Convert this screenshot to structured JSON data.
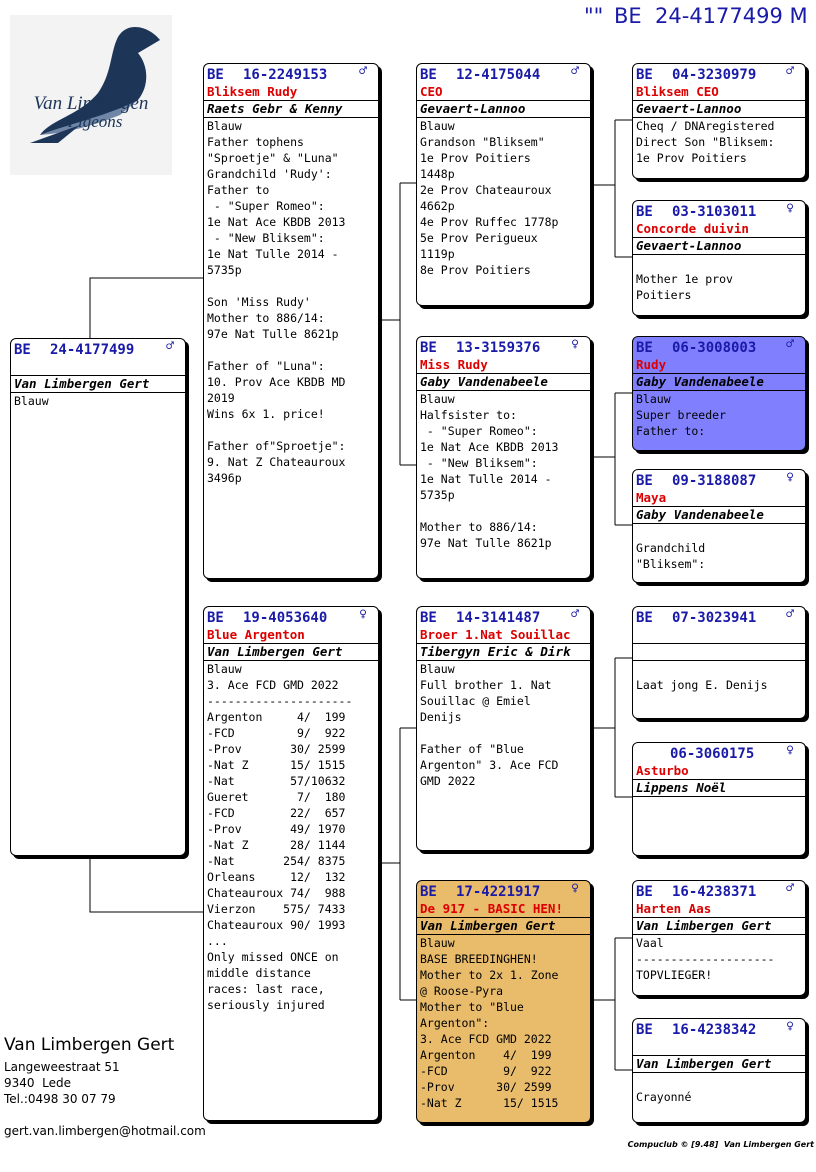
{
  "header": {
    "quote": "\"\"",
    "ring": "BE  24-4177499 M"
  },
  "logo": {
    "line1": "Van Limbergen",
    "line2": "Pigeons"
  },
  "pedigree": {
    "boxes": [
      {
        "prefix": "BE",
        "ring": "24-4177499",
        "sex": "♂",
        "owner": "Van Limbergen Gert",
        "paragraphs": [
          [
            "Blauw"
          ]
        ]
      },
      {
        "prefix": "BE",
        "ring": "16-2249153",
        "sex": "♂",
        "name": "Bliksem Rudy",
        "owner": "Raets Gebr & Kenny",
        "paragraphs": [
          [
            "Blauw",
            "Father tophens",
            "\"Sproetje\" & \"Luna\"",
            "Grandchild 'Rudy':",
            "Father to",
            " - \"Super Romeo\":",
            "1e Nat Ace KBDB 2013",
            " - \"New Bliksem\":",
            "1e Nat Tulle 2014 -",
            "5735p"
          ],
          [
            "Son 'Miss Rudy'",
            "Mother to 886/14:",
            "97e Nat Tulle 8621p"
          ],
          [
            "Father of \"Luna\":",
            "10. Prov Ace KBDB MD",
            "2019",
            "Wins 6x 1. price!"
          ],
          [
            "Father of\"Sproetje\":",
            "9. Nat Z Chateauroux",
            "3496p"
          ]
        ]
      },
      {
        "prefix": "BE",
        "ring": "19-4053640",
        "sex": "♀",
        "name": "Blue Argenton",
        "owner": "Van Limbergen Gert",
        "paragraphs": [
          [
            "Blauw",
            "3. Ace FCD GMD 2022",
            "---------------------",
            "Argenton     4/  199",
            "-FCD         9/  922",
            "-Prov       30/ 2599",
            "-Nat Z      15/ 1515",
            "-Nat        57/10632",
            "Gueret       7/  180",
            "-FCD        22/  657",
            "-Prov       49/ 1970",
            "-Nat Z      28/ 1144",
            "-Nat       254/ 8375",
            "Orleans     12/  132",
            "Chateauroux 74/  988",
            "Vierzon    575/ 7433",
            "Chateauroux 90/ 1993",
            "...",
            "Only missed ONCE on",
            "middle distance",
            "races: last race,",
            "seriously injured"
          ]
        ]
      },
      {
        "prefix": "BE",
        "ring": "12-4175044",
        "sex": "♂",
        "name": "CEO",
        "owner": "Gevaert-Lannoo",
        "paragraphs": [
          [
            "Blauw",
            "Grandson \"Bliksem\"",
            "1e Prov Poitiers",
            "1448p",
            "2e Prov Chateauroux",
            "4662p",
            "4e Prov Ruffec 1778p",
            "5e Prov Perigueux",
            "1119p",
            "8e Prov Poitiers"
          ]
        ]
      },
      {
        "prefix": "BE",
        "ring": "13-3159376",
        "sex": "♀",
        "name": "Miss Rudy",
        "owner": "Gaby Vandenabeele",
        "paragraphs": [
          [
            "Blauw",
            "Halfsister to:",
            " - \"Super Romeo\":",
            "1e Nat Ace KBDB 2013",
            " - \"New Bliksem\":",
            "1e Nat Tulle 2014 -",
            "5735p"
          ],
          [
            "Mother to 886/14:",
            "97e Nat Tulle 8621p"
          ]
        ]
      },
      {
        "prefix": "BE",
        "ring": "14-3141487",
        "sex": "♂",
        "name": "Broer 1.Nat Souillac",
        "owner": "Tibergyn Eric & Dirk",
        "paragraphs": [
          [
            "Blauw",
            "Full brother 1. Nat",
            "Souillac @ Emiel",
            "Denijs"
          ],
          [
            "Father of \"Blue",
            "Argenton\" 3. Ace FCD",
            "GMD 2022"
          ]
        ]
      },
      {
        "prefix": "BE",
        "ring": "17-4221917",
        "sex": "♀",
        "name": "De 917 - BASIC HEN!",
        "owner": "Van Limbergen Gert",
        "color": "#e9bc6c",
        "paragraphs": [
          [
            "Blauw",
            "BASE BREEDINGHEN!",
            "Mother to 2x 1. Zone",
            "@ Roose-Pyra",
            "Mother to \"Blue",
            "Argenton\":",
            "3. Ace FCD GMD 2022",
            "Argenton    4/  199",
            "-FCD        9/  922",
            "-Prov      30/ 2599",
            "-Nat Z      15/ 1515"
          ]
        ]
      },
      {
        "prefix": "BE",
        "ring": "04-3230979",
        "sex": "♂",
        "name": "Bliksem CEO",
        "owner": "Gevaert-Lannoo",
        "paragraphs": [
          [
            "Cheq / DNAregistered",
            "Direct Son \"Bliksem:",
            "1e Prov Poitiers"
          ]
        ]
      },
      {
        "prefix": "BE",
        "ring": "03-3103011",
        "sex": "♀",
        "name": "Concorde duivin",
        "owner": "Gevaert-Lannoo",
        "paragraphs": [
          [
            "Mother 1e prov",
            "Poitiers"
          ]
        ]
      },
      {
        "prefix": "BE",
        "ring": "06-3008003",
        "sex": "♂",
        "name": "Rudy",
        "owner": "Gaby Vandenabeele",
        "color": "#8080ff",
        "paragraphs": [
          [
            "Blauw",
            "Super breeder",
            "Father to:"
          ]
        ]
      },
      {
        "prefix": "BE",
        "ring": "09-3188087",
        "sex": "♀",
        "name": "Maya",
        "owner": "Gaby Vandenabeele",
        "paragraphs": [
          [
            "Grandchild",
            "\"Bliksem\":"
          ]
        ]
      },
      {
        "prefix": "BE",
        "ring": "07-3023941",
        "sex": "♂",
        "paragraphs": [
          [
            "Laat jong E. Denijs"
          ]
        ]
      },
      {
        "ring": "06-3060175",
        "sex": "♀",
        "name": "Asturbo",
        "owner": "Lippens Noël"
      },
      {
        "prefix": "BE",
        "ring": "16-4238371",
        "sex": "♂",
        "name": "Harten Aas",
        "owner": "Van Limbergen Gert",
        "paragraphs": [
          [
            "Vaal",
            "--------------------",
            "TOPVLIEGER!"
          ]
        ]
      },
      {
        "prefix": "BE",
        "ring": "16-4238342",
        "sex": "♀",
        "owner": "Van Limbergen Gert",
        "paragraphs": [
          [
            "Crayonné"
          ]
        ]
      }
    ]
  },
  "breeder": {
    "name": "Van Limbergen Gert",
    "address": [
      "Langeweestraat 51",
      "9340  Lede",
      "Tel.:0498 30 07 79"
    ],
    "email": "gert.van.limbergen@hotmail.com"
  },
  "credit": "Compuclub © [9.48]  Van Limbergen Gert"
}
